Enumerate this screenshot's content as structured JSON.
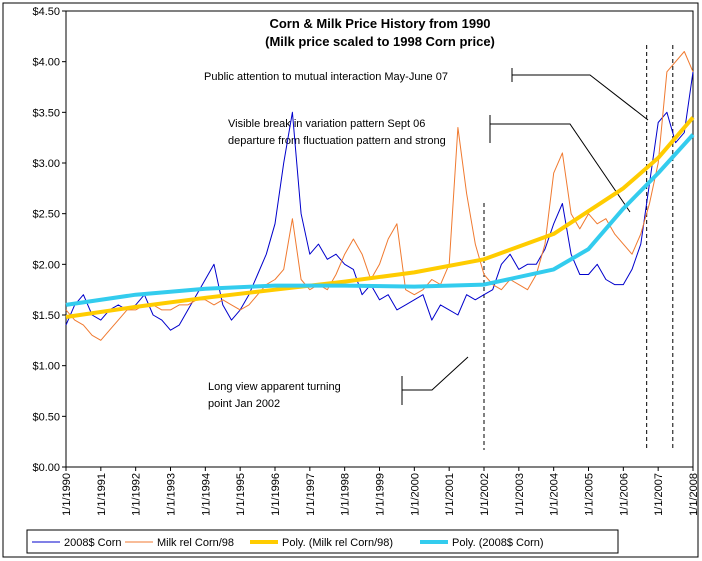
{
  "chart_data": {
    "type": "line",
    "title": "Corn & Milk Price History from 1990",
    "subtitle": "(Milk price scaled to 1998 Corn price)",
    "annotations": [
      "Public attention to mutual interaction May-June 07",
      "Visible break in variation pattern Sept 06",
      "departure from fluctuation pattern and strong",
      "Long view apparent turning",
      "point Jan 2002"
    ],
    "reference_lines": [
      2002,
      2006.67,
      2007.42
    ],
    "xlim": [
      1990,
      2008
    ],
    "xticks": [
      {
        "value": 1990,
        "label": "1/1/1990"
      },
      {
        "value": 1991,
        "label": "1/1/1991"
      },
      {
        "value": 1992,
        "label": "1/1/1992"
      },
      {
        "value": 1993,
        "label": "1/1/1993"
      },
      {
        "value": 1994,
        "label": "1/1/1994"
      },
      {
        "value": 1995,
        "label": "1/1/1995"
      },
      {
        "value": 1996,
        "label": "1/1/1996"
      },
      {
        "value": 1997,
        "label": "1/1/1997"
      },
      {
        "value": 1998,
        "label": "1/1/1998"
      },
      {
        "value": 1999,
        "label": "1/1/1999"
      },
      {
        "value": 2000,
        "label": "1/1/2000"
      },
      {
        "value": 2001,
        "label": "1/1/2001"
      },
      {
        "value": 2002,
        "label": "1/1/2002"
      },
      {
        "value": 2003,
        "label": "1/1/2003"
      },
      {
        "value": 2004,
        "label": "1/1/2004"
      },
      {
        "value": 2005,
        "label": "1/1/2005"
      },
      {
        "value": 2006,
        "label": "1/1/2006"
      },
      {
        "value": 2007,
        "label": "1/1/2007"
      },
      {
        "value": 2008,
        "label": "1/1/2008"
      }
    ],
    "ylim": [
      0,
      4.5
    ],
    "yticks": [
      {
        "value": 0,
        "label": "$0.00"
      },
      {
        "value": 0.5,
        "label": "$0.50"
      },
      {
        "value": 1,
        "label": "$1.00"
      },
      {
        "value": 1.5,
        "label": "$1.50"
      },
      {
        "value": 2,
        "label": "$2.00"
      },
      {
        "value": 2.5,
        "label": "$2.50"
      },
      {
        "value": 3,
        "label": "$3.00"
      },
      {
        "value": 3.5,
        "label": "$3.50"
      },
      {
        "value": 4,
        "label": "$4.00"
      },
      {
        "value": 4.5,
        "label": "$4.50"
      }
    ],
    "legend": "bottom",
    "series": [
      {
        "name": "2008$ Corn",
        "color": "#0000cc",
        "width": 1,
        "x": [
          1990,
          1990.25,
          1990.5,
          1990.75,
          1991,
          1991.25,
          1991.5,
          1991.75,
          1992,
          1992.25,
          1992.5,
          1992.75,
          1993,
          1993.25,
          1993.5,
          1993.75,
          1994,
          1994.25,
          1994.5,
          1994.75,
          1995,
          1995.25,
          1995.5,
          1995.75,
          1996,
          1996.25,
          1996.5,
          1996.75,
          1997,
          1997.25,
          1997.5,
          1997.75,
          1998,
          1998.25,
          1998.5,
          1998.75,
          1999,
          1999.25,
          1999.5,
          1999.75,
          2000,
          2000.25,
          2000.5,
          2000.75,
          2001,
          2001.25,
          2001.5,
          2001.75,
          2002,
          2002.25,
          2002.5,
          2002.75,
          2003,
          2003.25,
          2003.5,
          2003.75,
          2004,
          2004.25,
          2004.5,
          2004.75,
          2005,
          2005.25,
          2005.5,
          2005.75,
          2006,
          2006.25,
          2006.5,
          2006.75,
          2007,
          2007.25,
          2007.5,
          2007.75,
          2008
        ],
        "values": [
          1.4,
          1.6,
          1.7,
          1.5,
          1.45,
          1.55,
          1.6,
          1.55,
          1.6,
          1.7,
          1.5,
          1.45,
          1.35,
          1.4,
          1.55,
          1.7,
          1.85,
          2.0,
          1.6,
          1.45,
          1.55,
          1.7,
          1.9,
          2.1,
          2.4,
          3.0,
          3.5,
          2.5,
          2.1,
          2.2,
          2.05,
          2.1,
          2.0,
          1.95,
          1.7,
          1.8,
          1.65,
          1.7,
          1.55,
          1.6,
          1.65,
          1.7,
          1.45,
          1.6,
          1.55,
          1.5,
          1.7,
          1.65,
          1.7,
          1.75,
          2.0,
          2.1,
          1.95,
          2.0,
          2.0,
          2.15,
          2.4,
          2.6,
          2.1,
          1.9,
          1.9,
          2.0,
          1.85,
          1.8,
          1.8,
          1.95,
          2.2,
          2.8,
          3.4,
          3.5,
          3.2,
          3.3,
          3.9
        ]
      },
      {
        "name": "Milk rel Corn/98",
        "color": "#f07a30",
        "width": 1,
        "x": [
          1990,
          1990.25,
          1990.5,
          1990.75,
          1991,
          1991.25,
          1991.5,
          1991.75,
          1992,
          1992.25,
          1992.5,
          1992.75,
          1993,
          1993.25,
          1993.5,
          1993.75,
          1994,
          1994.25,
          1994.5,
          1994.75,
          1995,
          1995.25,
          1995.5,
          1995.75,
          1996,
          1996.25,
          1996.5,
          1996.75,
          1997,
          1997.25,
          1997.5,
          1997.75,
          1998,
          1998.25,
          1998.5,
          1998.75,
          1999,
          1999.25,
          1999.5,
          1999.75,
          2000,
          2000.25,
          2000.5,
          2000.75,
          2001,
          2001.25,
          2001.5,
          2001.75,
          2002,
          2002.25,
          2002.5,
          2002.75,
          2003,
          2003.25,
          2003.5,
          2003.75,
          2004,
          2004.25,
          2004.5,
          2004.75,
          2005,
          2005.25,
          2005.5,
          2005.75,
          2006,
          2006.25,
          2006.5,
          2006.75,
          2007,
          2007.25,
          2007.5,
          2007.75,
          2008
        ],
        "values": [
          1.55,
          1.45,
          1.4,
          1.3,
          1.25,
          1.35,
          1.45,
          1.55,
          1.55,
          1.6,
          1.6,
          1.55,
          1.55,
          1.6,
          1.6,
          1.65,
          1.65,
          1.6,
          1.65,
          1.6,
          1.55,
          1.6,
          1.7,
          1.8,
          1.85,
          1.95,
          2.45,
          1.85,
          1.75,
          1.8,
          1.75,
          1.9,
          2.1,
          2.25,
          2.1,
          1.85,
          2.0,
          2.25,
          2.4,
          1.75,
          1.7,
          1.75,
          1.85,
          1.8,
          2.0,
          3.35,
          2.7,
          2.2,
          1.9,
          1.8,
          1.75,
          1.85,
          1.8,
          1.75,
          1.9,
          2.2,
          2.9,
          3.1,
          2.5,
          2.35,
          2.5,
          2.4,
          2.45,
          2.3,
          2.2,
          2.1,
          2.3,
          2.6,
          3.0,
          3.9,
          4.0,
          4.1,
          3.9
        ]
      },
      {
        "name": "Poly. (Milk rel Corn/98)",
        "color": "#ffcc00",
        "width": 4,
        "x": [
          1990,
          1992,
          1994,
          1996,
          1998,
          2000,
          2002,
          2004,
          2006,
          2007,
          2008
        ],
        "values": [
          1.48,
          1.58,
          1.67,
          1.75,
          1.83,
          1.92,
          2.05,
          2.3,
          2.75,
          3.05,
          3.45
        ]
      },
      {
        "name": "Poly. (2008$ Corn)",
        "color": "#33ccee",
        "width": 4,
        "x": [
          1990,
          1992,
          1994,
          1996,
          1998,
          2000,
          2002,
          2004,
          2005,
          2006,
          2007,
          2008
        ],
        "values": [
          1.6,
          1.7,
          1.76,
          1.79,
          1.79,
          1.78,
          1.8,
          1.95,
          2.15,
          2.55,
          2.9,
          3.28
        ]
      }
    ]
  }
}
